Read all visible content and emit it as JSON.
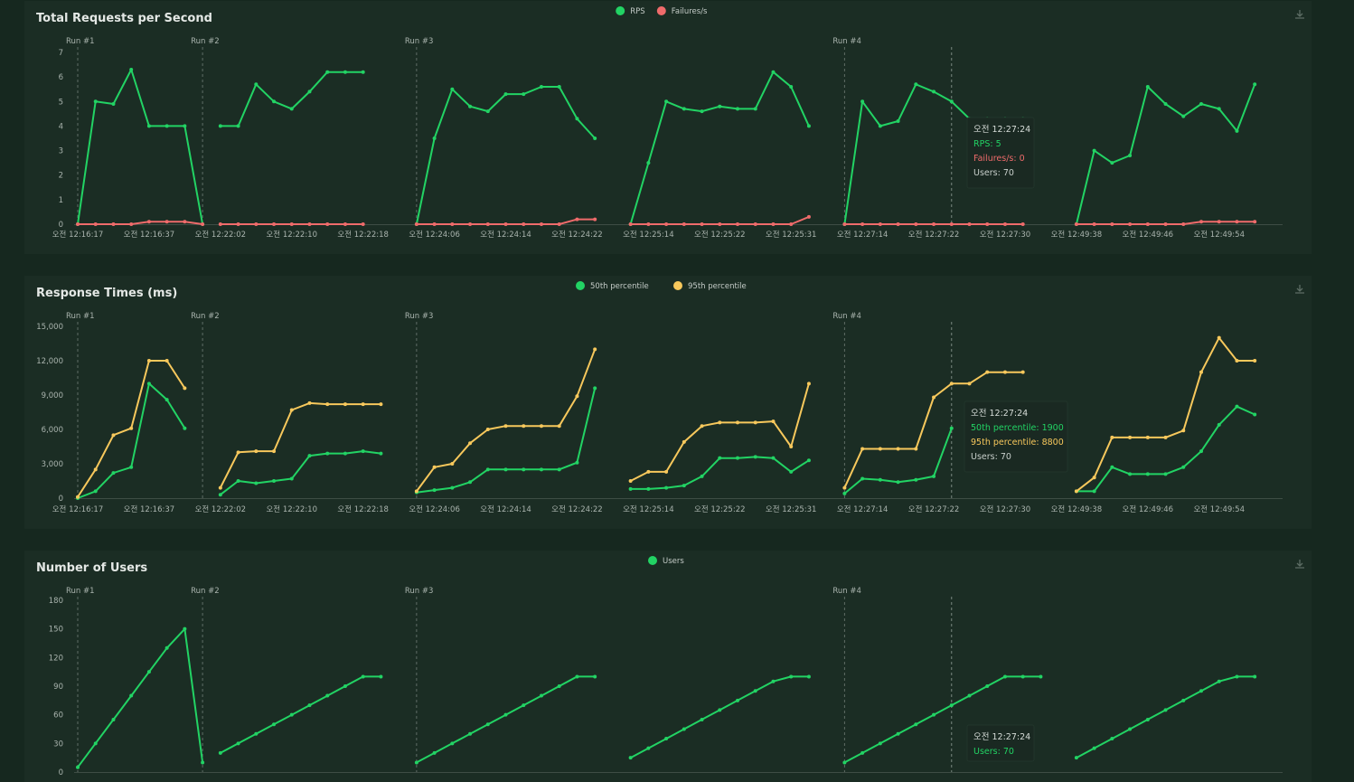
{
  "chart_data": [
    {
      "type": "line",
      "title": "Total Requests per Second",
      "yticks": [
        0,
        1,
        2,
        3,
        4,
        5,
        6,
        7
      ],
      "ylim": [
        0,
        7
      ],
      "run_labels": [
        {
          "label": "Run #1",
          "at": 0
        },
        {
          "label": "Run #2",
          "at": 7
        },
        {
          "label": "Run #3",
          "at": 19
        },
        {
          "label": "Run #4",
          "at": 43
        }
      ],
      "xtick_labels": [
        {
          "label": "오전 12:16:17",
          "at": 0
        },
        {
          "label": "오전 12:16:37",
          "at": 4
        },
        {
          "label": "오전 12:22:02",
          "at": 8
        },
        {
          "label": "오전 12:22:10",
          "at": 12
        },
        {
          "label": "오전 12:22:18",
          "at": 16
        },
        {
          "label": "오전 12:24:06",
          "at": 20
        },
        {
          "label": "오전 12:24:14",
          "at": 24
        },
        {
          "label": "오전 12:24:22",
          "at": 28
        },
        {
          "label": "오전 12:25:14",
          "at": 32
        },
        {
          "label": "오전 12:25:22",
          "at": 36
        },
        {
          "label": "오전 12:25:31",
          "at": 40
        },
        {
          "label": "오전 12:27:14",
          "at": 44
        },
        {
          "label": "오전 12:27:22",
          "at": 48
        },
        {
          "label": "오전 12:27:30",
          "at": 52
        },
        {
          "label": "오전 12:49:38",
          "at": 56
        },
        {
          "label": "오전 12:49:46",
          "at": 60
        },
        {
          "label": "오전 12:49:54",
          "at": 64
        }
      ],
      "series": [
        {
          "name": "RPS",
          "color": "#22d364",
          "segments": [
            {
              "start": 0,
              "values": [
                0,
                5,
                4.9,
                6.3,
                4,
                4,
                4,
                0
              ]
            },
            {
              "start": 8,
              "values": [
                4,
                4,
                5.7,
                5,
                4.7,
                5.4,
                6.2,
                6.2,
                6.2
              ]
            },
            {
              "start": 19,
              "values": [
                0,
                3.5,
                5.5,
                4.8,
                4.6,
                5.3,
                5.3,
                5.6,
                5.6,
                4.3,
                3.5
              ]
            },
            {
              "start": 31,
              "values": [
                0,
                2.5,
                5,
                4.7,
                4.6,
                4.8,
                4.7,
                4.7,
                6.2,
                5.6,
                4
              ]
            },
            {
              "start": 43,
              "values": [
                0,
                5,
                4,
                4.2,
                5.7,
                5.4,
                5,
                4.3,
                4.3,
                4.3,
                4.3
              ]
            },
            {
              "start": 56,
              "values": [
                0,
                3,
                2.5,
                2.8,
                5.6,
                4.9,
                4.4,
                4.9,
                4.7,
                3.8,
                5.7
              ]
            }
          ]
        },
        {
          "name": "Failures/s",
          "color": "#ef6b6b",
          "segments": [
            {
              "start": 0,
              "values": [
                0,
                0,
                0,
                0,
                0.1,
                0.1,
                0.1,
                0
              ]
            },
            {
              "start": 8,
              "values": [
                0,
                0,
                0,
                0,
                0,
                0,
                0,
                0,
                0
              ]
            },
            {
              "start": 19,
              "values": [
                0,
                0,
                0,
                0,
                0,
                0,
                0,
                0,
                0,
                0.2,
                0.2
              ]
            },
            {
              "start": 31,
              "values": [
                0,
                0,
                0,
                0,
                0,
                0,
                0,
                0,
                0,
                0,
                0.3
              ]
            },
            {
              "start": 43,
              "values": [
                0,
                0,
                0,
                0,
                0,
                0,
                0,
                0,
                0,
                0,
                0
              ]
            },
            {
              "start": 56,
              "values": [
                0,
                0,
                0,
                0,
                0,
                0,
                0,
                0.1,
                0.1,
                0.1,
                0.1
              ]
            }
          ]
        }
      ],
      "tooltip": {
        "time": "오전 12:27:24",
        "lines": [
          {
            "text": "RPS: 5",
            "color": "#22d364"
          },
          {
            "text": "Failures/s: 0",
            "color": "#ef6b6b"
          },
          {
            "text": "Users: 70",
            "color": "#c8cfcb"
          }
        ]
      }
    },
    {
      "type": "line",
      "title": "Response Times (ms)",
      "yticks": [
        0,
        3000,
        6000,
        9000,
        12000,
        15000
      ],
      "ytick_labels": [
        "0",
        "3,000",
        "6,000",
        "9,000",
        "12,000",
        "15,000"
      ],
      "ylim": [
        0,
        15000
      ],
      "run_labels": [
        {
          "label": "Run #1",
          "at": 0
        },
        {
          "label": "Run #2",
          "at": 7
        },
        {
          "label": "Run #3",
          "at": 19
        },
        {
          "label": "Run #4",
          "at": 43
        }
      ],
      "xtick_labels": [
        {
          "label": "오전 12:16:17",
          "at": 0
        },
        {
          "label": "오전 12:16:37",
          "at": 4
        },
        {
          "label": "오전 12:22:02",
          "at": 8
        },
        {
          "label": "오전 12:22:10",
          "at": 12
        },
        {
          "label": "오전 12:22:18",
          "at": 16
        },
        {
          "label": "오전 12:24:06",
          "at": 20
        },
        {
          "label": "오전 12:24:14",
          "at": 24
        },
        {
          "label": "오전 12:24:22",
          "at": 28
        },
        {
          "label": "오전 12:25:14",
          "at": 32
        },
        {
          "label": "오전 12:25:22",
          "at": 36
        },
        {
          "label": "오전 12:25:31",
          "at": 40
        },
        {
          "label": "오전 12:27:14",
          "at": 44
        },
        {
          "label": "오전 12:27:22",
          "at": 48
        },
        {
          "label": "오전 12:27:30",
          "at": 52
        },
        {
          "label": "오전 12:49:38",
          "at": 56
        },
        {
          "label": "오전 12:49:46",
          "at": 60
        },
        {
          "label": "오전 12:49:54",
          "at": 64
        }
      ],
      "series": [
        {
          "name": "50th percentile",
          "color": "#22d364",
          "segments": [
            {
              "start": 0,
              "values": [
                0,
                600,
                2200,
                2700,
                10000,
                8600,
                6100
              ]
            },
            {
              "start": 8,
              "values": [
                300,
                1500,
                1300,
                1500,
                1700,
                3700,
                3900,
                3900,
                4100,
                3900
              ]
            },
            {
              "start": 19,
              "values": [
                500,
                700,
                900,
                1400,
                2500,
                2500,
                2500,
                2500,
                2500,
                3100,
                9600
              ]
            },
            {
              "start": 31,
              "values": [
                800,
                800,
                900,
                1100,
                1900,
                3500,
                3500,
                3600,
                3500,
                2300,
                3300
              ]
            },
            {
              "start": 43,
              "values": [
                400,
                1700,
                1600,
                1400,
                1600,
                1900,
                6100
              ]
            },
            {
              "start": 56,
              "values": [
                600,
                600,
                2700,
                2100,
                2100,
                2100,
                2700,
                4100,
                6400,
                8000,
                7300
              ]
            }
          ]
        },
        {
          "name": "95th percentile",
          "color": "#f7c85c",
          "segments": [
            {
              "start": 0,
              "values": [
                100,
                2500,
                5500,
                6100,
                12000,
                12000,
                9600
              ]
            },
            {
              "start": 8,
              "values": [
                900,
                4000,
                4100,
                4100,
                7700,
                8300,
                8200,
                8200,
                8200,
                8200
              ]
            },
            {
              "start": 19,
              "values": [
                600,
                2700,
                3000,
                4800,
                6000,
                6300,
                6300,
                6300,
                6300,
                8900,
                13000
              ]
            },
            {
              "start": 31,
              "values": [
                1500,
                2300,
                2300,
                4900,
                6300,
                6600,
                6600,
                6600,
                6700,
                4500,
                10000
              ]
            },
            {
              "start": 43,
              "values": [
                900,
                4300,
                4300,
                4300,
                4300,
                8800,
                10000,
                10000,
                11000,
                11000,
                11000
              ]
            },
            {
              "start": 56,
              "values": [
                600,
                1800,
                5300,
                5300,
                5300,
                5300,
                5900,
                11000,
                14000,
                12000,
                12000
              ]
            }
          ]
        }
      ],
      "tooltip": {
        "time": "오전 12:27:24",
        "lines": [
          {
            "text": "50th percentile: 1900",
            "color": "#22d364"
          },
          {
            "text": "95th percentile: 8800",
            "color": "#f7c85c"
          },
          {
            "text": "Users: 70",
            "color": "#c8cfcb"
          }
        ]
      }
    },
    {
      "type": "line",
      "title": "Number of Users",
      "yticks": [
        0,
        30,
        60,
        90,
        120,
        150,
        180
      ],
      "ylim": [
        0,
        180
      ],
      "run_labels": [
        {
          "label": "Run #1",
          "at": 0
        },
        {
          "label": "Run #2",
          "at": 7
        },
        {
          "label": "Run #3",
          "at": 19
        },
        {
          "label": "Run #4",
          "at": 43
        }
      ],
      "xtick_labels": [],
      "series": [
        {
          "name": "Users",
          "color": "#22d364",
          "segments": [
            {
              "start": 0,
              "values": [
                5,
                30,
                55,
                80,
                105,
                130,
                150,
                10
              ]
            },
            {
              "start": 8,
              "values": [
                20,
                30,
                40,
                50,
                60,
                70,
                80,
                90,
                100,
                100
              ]
            },
            {
              "start": 19,
              "values": [
                10,
                20,
                30,
                40,
                50,
                60,
                70,
                80,
                90,
                100,
                100
              ]
            },
            {
              "start": 31,
              "values": [
                15,
                25,
                35,
                45,
                55,
                65,
                75,
                85,
                95,
                100,
                100
              ]
            },
            {
              "start": 43,
              "values": [
                10,
                20,
                30,
                40,
                50,
                60,
                70,
                80,
                90,
                100,
                100,
                100
              ]
            },
            {
              "start": 56,
              "values": [
                15,
                25,
                35,
                45,
                55,
                65,
                75,
                85,
                95,
                100,
                100
              ]
            }
          ]
        }
      ],
      "tooltip": {
        "time": "오전 12:27:24",
        "lines": [
          {
            "text": "Users: 70",
            "color": "#22d364"
          }
        ]
      }
    }
  ],
  "ui": {
    "download_icon": "download-icon",
    "panel_bg": "#1b2d24",
    "page_bg": "#16281f"
  }
}
